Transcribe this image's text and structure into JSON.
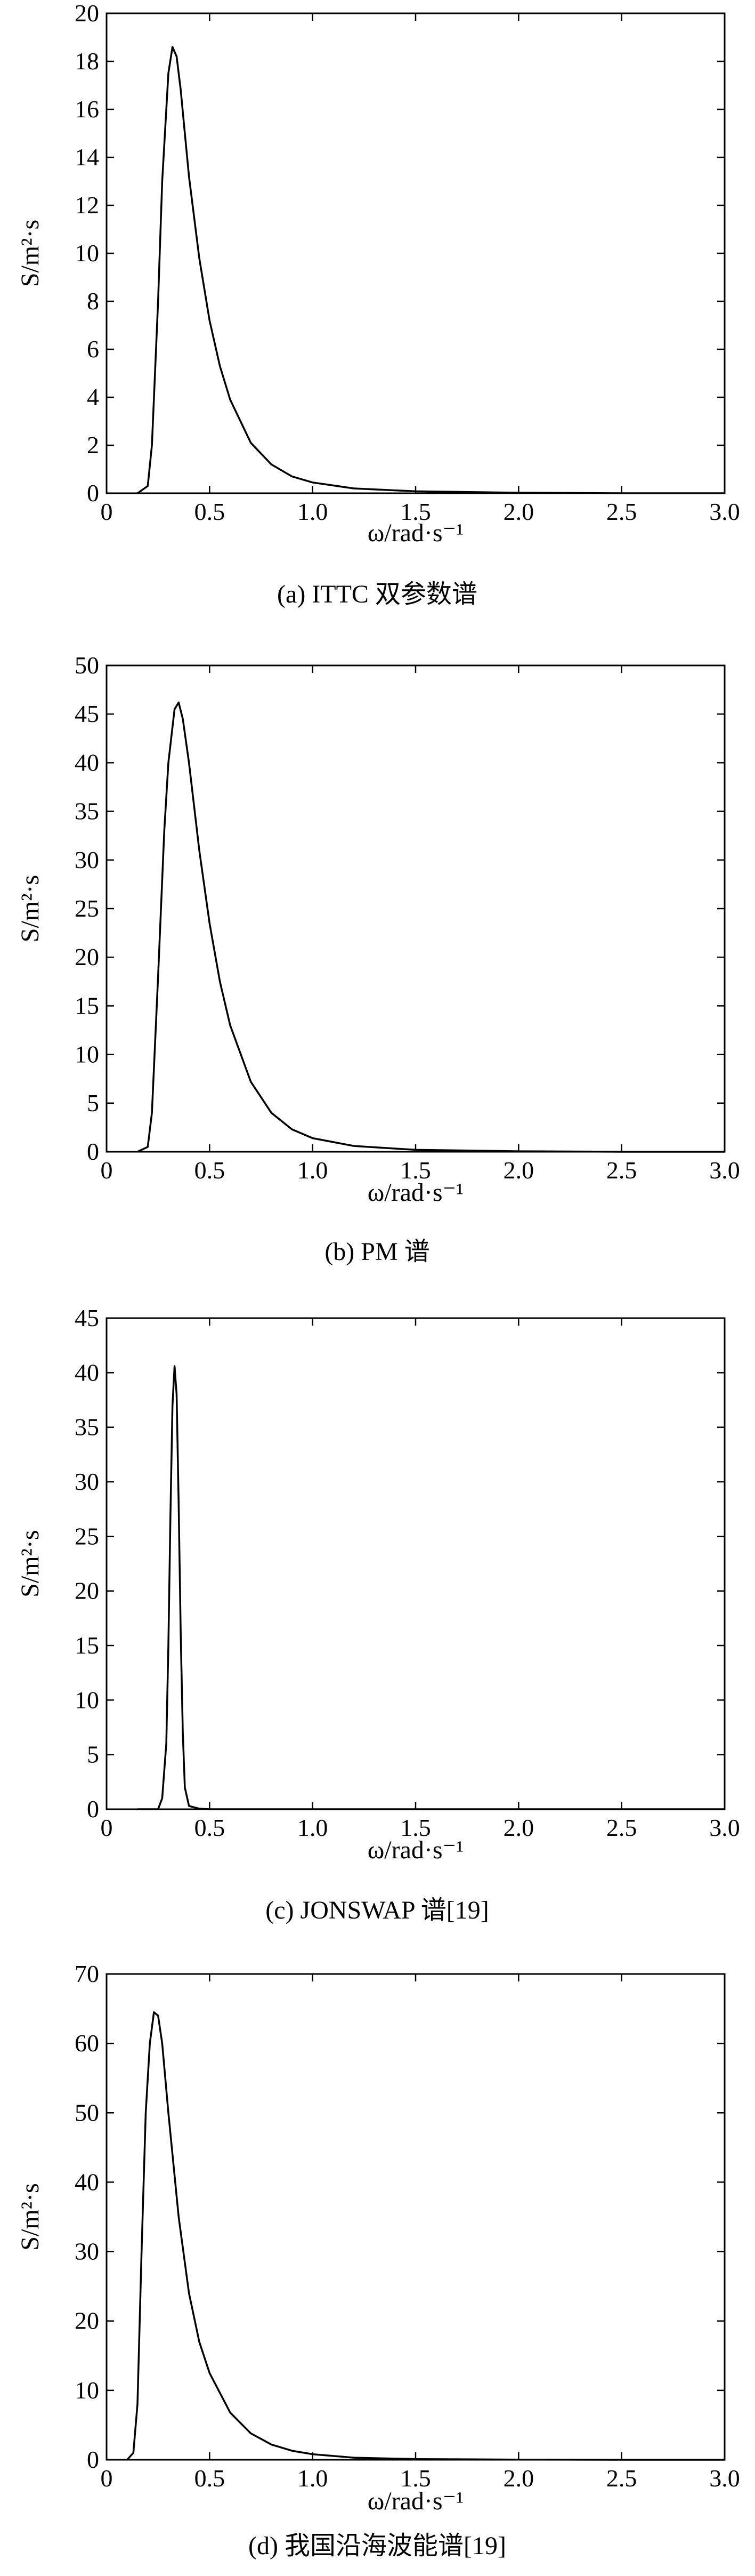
{
  "chart_data": [
    {
      "type": "line",
      "caption": "(a) ITTC 双参数谱",
      "xlabel": "ω/rad·s⁻¹",
      "ylabel": "S/m²·s",
      "xlim": [
        0,
        3
      ],
      "ylim": [
        0,
        20
      ],
      "xticks": [
        "0",
        "0.5",
        "1.0",
        "1.5",
        "2.0",
        "2.5",
        "3.0"
      ],
      "yticks": [
        "0",
        "2",
        "4",
        "6",
        "8",
        "10",
        "12",
        "14",
        "16",
        "18",
        "20"
      ],
      "x": [
        0.15,
        0.2,
        0.22,
        0.25,
        0.27,
        0.3,
        0.32,
        0.34,
        0.36,
        0.38,
        0.4,
        0.45,
        0.5,
        0.55,
        0.6,
        0.7,
        0.8,
        0.9,
        1.0,
        1.2,
        1.5,
        2.0,
        2.5,
        3.0
      ],
      "y": [
        0.0,
        0.3,
        2.0,
        8.0,
        13.0,
        17.5,
        18.6,
        18.2,
        16.8,
        15.0,
        13.2,
        9.8,
        7.2,
        5.3,
        3.9,
        2.1,
        1.2,
        0.7,
        0.45,
        0.2,
        0.08,
        0.02,
        0.0,
        0.0
      ]
    },
    {
      "type": "line",
      "caption": "(b) PM 谱",
      "xlabel": "ω/rad·s⁻¹",
      "ylabel": "S/m²·s",
      "xlim": [
        0,
        3
      ],
      "ylim": [
        0,
        50
      ],
      "xticks": [
        "0",
        "0.5",
        "1.0",
        "1.5",
        "2.0",
        "2.5",
        "3.0"
      ],
      "yticks": [
        "0",
        "5",
        "10",
        "15",
        "20",
        "25",
        "30",
        "35",
        "40",
        "45",
        "50"
      ],
      "x": [
        0.15,
        0.2,
        0.22,
        0.25,
        0.28,
        0.3,
        0.33,
        0.35,
        0.37,
        0.4,
        0.45,
        0.5,
        0.55,
        0.6,
        0.7,
        0.8,
        0.9,
        1.0,
        1.2,
        1.5,
        2.0,
        2.5,
        3.0
      ],
      "y": [
        0.0,
        0.5,
        4.0,
        18.0,
        33.0,
        40.0,
        45.5,
        46.2,
        44.5,
        40.0,
        31.0,
        23.5,
        17.5,
        13.0,
        7.2,
        4.0,
        2.3,
        1.4,
        0.6,
        0.2,
        0.05,
        0.0,
        0.0
      ]
    },
    {
      "type": "line",
      "caption": "(c) JONSWAP 谱[19]",
      "xlabel": "ω/rad·s⁻¹",
      "ylabel": "S/m²·s",
      "xlim": [
        0,
        3
      ],
      "ylim": [
        0,
        45
      ],
      "xticks": [
        "0",
        "0.5",
        "1.0",
        "1.5",
        "2.0",
        "2.5",
        "3.0"
      ],
      "yticks": [
        "0",
        "5",
        "10",
        "15",
        "20",
        "25",
        "30",
        "35",
        "40",
        "45"
      ],
      "x": [
        0.15,
        0.25,
        0.27,
        0.29,
        0.3,
        0.31,
        0.32,
        0.33,
        0.34,
        0.35,
        0.36,
        0.37,
        0.38,
        0.4,
        0.45,
        0.5,
        1.0,
        3.0
      ],
      "y": [
        0.0,
        0.0,
        1.0,
        6.0,
        15.0,
        27.0,
        37.0,
        40.6,
        38.0,
        28.0,
        16.0,
        7.0,
        2.0,
        0.3,
        0.05,
        0.0,
        0.0,
        0.0
      ]
    },
    {
      "type": "line",
      "caption": "(d) 我国沿海波能谱[19]",
      "xlabel": "ω/rad·s⁻¹",
      "ylabel": "S/m²·s",
      "xlim": [
        0,
        3
      ],
      "ylim": [
        0,
        70
      ],
      "xticks": [
        "0",
        "0.5",
        "1.0",
        "1.5",
        "2.0",
        "2.5",
        "3.0"
      ],
      "yticks": [
        "0",
        "10",
        "20",
        "30",
        "40",
        "50",
        "60",
        "70"
      ],
      "x": [
        0.1,
        0.13,
        0.15,
        0.17,
        0.19,
        0.21,
        0.23,
        0.25,
        0.27,
        0.3,
        0.35,
        0.4,
        0.45,
        0.5,
        0.6,
        0.7,
        0.8,
        0.9,
        1.0,
        1.2,
        1.5,
        2.0,
        2.5,
        3.0
      ],
      "y": [
        0.0,
        1.0,
        8.0,
        30.0,
        50.0,
        60.0,
        64.5,
        64.0,
        60.0,
        50.0,
        35.0,
        24.0,
        17.0,
        12.5,
        6.8,
        3.8,
        2.2,
        1.3,
        0.8,
        0.3,
        0.1,
        0.02,
        0.0,
        0.0
      ]
    }
  ]
}
